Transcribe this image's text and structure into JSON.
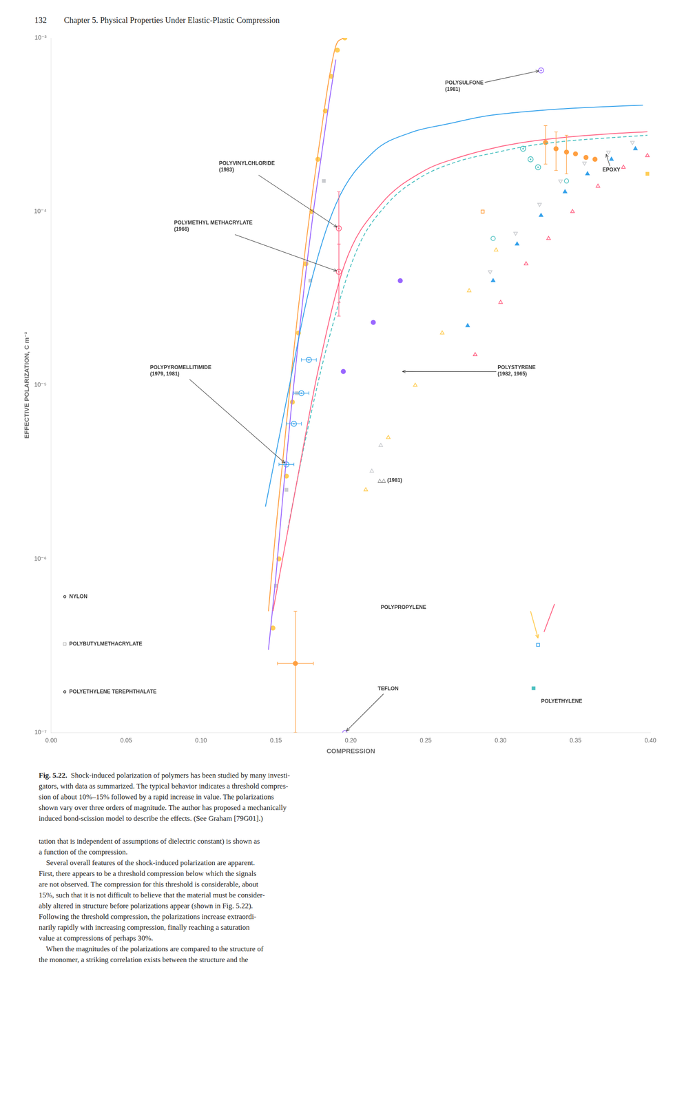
{
  "page_number": "132",
  "page_title": "Chapter 5. Physical Properties Under Elastic-Plastic Compression",
  "caption_label": "Fig. 5.22.",
  "caption_lines": [
    "Shock-induced polarization of polymers has been studied by many investi-",
    "gators, with data as summarized. The typical behavior indicates a threshold compres-",
    "sion of about 10%–15% followed by a rapid increase in value. The polarizations",
    "shown vary over three orders of magnitude. The author has proposed a mechanically",
    "induced bond-scission model to describe the effects. (See Graham [79G01].)"
  ],
  "body_lines": [
    "tation that is independent of assumptions of dielectric constant) is shown as",
    "a function of the compression.",
    "    Several overall features of the shock-induced polarization are apparent.",
    "First, there appears to be a threshold compression below which the signals",
    "are not observed. The compression for this threshold is considerable, about",
    "15%, such that it is not difficult to believe that the material must be consider-",
    "ably altered in structure before polarizations appear (shown in Fig. 5.22).",
    "Following the threshold compression, the polarizations increase extraordi-",
    "narily rapidly with increasing compression, finally reaching a saturation",
    "value at compressions of perhaps 30%.",
    "    When the magnitudes of the polarizations are compared to the structure of",
    "the monomer, a striking correlation exists between the structure and the"
  ],
  "chart_data": {
    "type": "scatter",
    "xlabel": "COMPRESSION",
    "ylabel": "EFFECTIVE POLARIZATION, C m⁻²",
    "log": "y",
    "grid": false,
    "xlim": [
      0.0,
      0.4
    ],
    "ylim": [
      1e-07,
      0.001
    ],
    "xticks": [
      {
        "value": 0.0,
        "label": "0.00"
      },
      0.05,
      {
        "value": 0.1,
        "label": "0.10"
      },
      0.15,
      {
        "value": 0.2,
        "label": "0.20"
      },
      0.25,
      {
        "value": 0.3,
        "label": "0.30"
      },
      0.35,
      {
        "value": 0.4,
        "label": "0.40"
      }
    ],
    "yticks": [
      {
        "value": 1e-07,
        "label": "10⁻⁷"
      },
      {
        "value": 1e-06,
        "label": "10⁻⁶"
      },
      {
        "value": 1e-05,
        "label": "10⁻⁵"
      },
      {
        "value": 0.0001,
        "label": "10⁻⁴"
      },
      {
        "value": 0.001,
        "label": "10⁻³"
      }
    ],
    "series": [
      {
        "type": "line",
        "line_style": "solid",
        "x": [
          0.143,
          0.158,
          0.172,
          0.19,
          0.215,
          0.24,
          0.265,
          0.29,
          0.315,
          0.34,
          0.365,
          0.395
        ],
        "values": [
          2e-06,
          9e-06,
          3.5e-05,
          0.00011,
          0.00022,
          0.000285,
          0.00032,
          0.000355,
          0.000375,
          0.00039,
          0.0004,
          0.00041
        ]
      },
      {
        "type": "line",
        "line_style": "solid",
        "x": [
          0.148,
          0.163,
          0.178,
          0.196,
          0.22,
          0.248,
          0.272,
          0.298,
          0.322,
          0.348,
          0.372,
          0.398
        ],
        "values": [
          5e-07,
          2.5e-06,
          1.2e-05,
          5e-05,
          0.00011,
          0.00017,
          0.000205,
          0.000235,
          0.000255,
          0.00027,
          0.00028,
          0.000288
        ]
      },
      {
        "type": "line",
        "line_style": "dashed",
        "x": [
          0.158,
          0.17,
          0.185,
          0.204,
          0.224,
          0.248,
          0.272,
          0.298,
          0.32,
          0.345,
          0.37,
          0.398
        ],
        "values": [
          1.5e-06,
          5e-06,
          1.8e-05,
          6e-05,
          0.00011,
          0.00016,
          0.000195,
          0.00022,
          0.00024,
          0.000255,
          0.000265,
          0.000275
        ]
      },
      {
        "type": "line",
        "line_style": "solid",
        "x": [
          0.145,
          0.15,
          0.155,
          0.16,
          0.165,
          0.17,
          0.175,
          0.18,
          0.185,
          0.19,
          0.195
        ],
        "values": [
          5e-07,
          1.5e-06,
          4e-06,
          1.1e-05,
          2.8e-05,
          6.5e-05,
          0.00014,
          0.00028,
          0.00055,
          0.0009,
          0.001
        ]
      },
      {
        "type": "line",
        "line_style": "solid",
        "x": [
          0.145,
          0.15,
          0.155,
          0.16,
          0.165,
          0.17,
          0.175,
          0.18,
          0.185,
          0.19
        ],
        "values": [
          3e-07,
          8e-07,
          2.5e-06,
          7e-06,
          1.8e-05,
          4.5e-05,
          0.0001,
          0.0002,
          0.0004,
          0.00075
        ]
      },
      {
        "type": "scatter",
        "marker": "circle",
        "x": [
          0.148,
          0.152,
          0.157,
          0.161,
          0.165,
          0.17,
          0.174,
          0.178,
          0.183,
          0.187,
          0.191,
          0.196
        ],
        "values": [
          4e-07,
          1e-06,
          3e-06,
          8e-06,
          2e-05,
          5e-05,
          0.0001,
          0.0002,
          0.00038,
          0.0006,
          0.00085,
          0.001
        ]
      },
      {
        "type": "scatter",
        "marker": "square",
        "x": [
          0.15,
          0.157,
          0.164,
          0.173,
          0.182
        ],
        "values": [
          7e-07,
          2.5e-06,
          9e-06,
          4e-05,
          0.00015
        ]
      },
      {
        "type": "scatter",
        "marker": "circle_dot",
        "x": [
          0.157,
          0.162,
          0.167,
          0.172
        ],
        "values": [
          3.5e-06,
          6e-06,
          9e-06,
          1.4e-05
        ],
        "xerr": [
          0.005,
          0.005,
          0.005,
          0.005
        ]
      },
      {
        "type": "scatter",
        "marker": "circle_dot",
        "x": [
          0.192,
          0.192
        ],
        "values": [
          8e-05,
          4.5e-05
        ],
        "yerr": [
          5e-05,
          2e-05
        ]
      },
      {
        "type": "scatter",
        "marker": "circle_dot",
        "x": [
          0.315,
          0.32,
          0.325
        ],
        "values": [
          0.00023,
          0.0002,
          0.00018
        ]
      },
      {
        "type": "scatter",
        "marker": "circle",
        "x": [
          0.33,
          0.337,
          0.344,
          0.35,
          0.357,
          0.363
        ],
        "values": [
          0.00025,
          0.00023,
          0.00022,
          0.000215,
          0.000205,
          0.0002
        ],
        "yerr": [
          6.25e-05,
          5.75e-05,
          5.5e-05,
          null,
          null,
          null
        ]
      },
      {
        "type": "scatter",
        "marker": "circle_dot",
        "x": [
          0.327
        ],
        "values": [
          0.00065
        ]
      },
      {
        "type": "scatter",
        "marker": "square",
        "x": [
          0.398
        ],
        "values": [
          0.000165
        ]
      },
      {
        "type": "scatter",
        "marker": "triangle_down_open",
        "x": [
          0.293,
          0.31,
          0.326,
          0.34,
          0.356,
          0.372,
          0.388
        ],
        "values": [
          4.5e-05,
          7.5e-05,
          0.00011,
          0.00015,
          0.00019,
          0.00022,
          0.00025
        ]
      },
      {
        "type": "scatter",
        "marker": "triangle",
        "x": [
          0.278,
          0.295,
          0.311,
          0.327,
          0.343,
          0.358,
          0.374,
          0.39
        ],
        "values": [
          2.2e-05,
          4e-05,
          6.5e-05,
          9.5e-05,
          0.00013,
          0.000165,
          0.0002,
          0.00023
        ]
      },
      {
        "type": "scatter",
        "marker": "triangle_open",
        "x": [
          0.283,
          0.3,
          0.317,
          0.332,
          0.348,
          0.365,
          0.382,
          0.398
        ],
        "values": [
          1.5e-05,
          3e-05,
          5e-05,
          7e-05,
          0.0001,
          0.00014,
          0.00018,
          0.00021
        ]
      },
      {
        "type": "scatter",
        "marker": "circle_open",
        "x": [
          0.295,
          0.344
        ],
        "values": [
          7e-05,
          0.00015
        ]
      },
      {
        "type": "scatter",
        "marker": "square_open",
        "x": [
          0.288
        ],
        "values": [
          0.0001
        ]
      },
      {
        "type": "scatter",
        "marker": "circle",
        "x": [
          0.195,
          0.215,
          0.233
        ],
        "values": [
          1.2e-05,
          2.3e-05,
          4e-05
        ]
      },
      {
        "type": "scatter",
        "marker": "triangle_open",
        "x": [
          0.21,
          0.225,
          0.243,
          0.261,
          0.279,
          0.297
        ],
        "values": [
          2.5e-06,
          5e-06,
          1e-05,
          2e-05,
          3.5e-05,
          6e-05
        ]
      },
      {
        "type": "scatter",
        "marker": "triangle_open",
        "x": [
          0.214,
          0.22
        ],
        "values": [
          3.2e-06,
          4.5e-06
        ]
      },
      {
        "type": "scatter",
        "marker": "square_open",
        "x": [
          0.325
        ],
        "values": [
          3.2e-07
        ]
      },
      {
        "type": "line",
        "line_style": "solid",
        "x": [
          0.329,
          0.336
        ],
        "values": [
          3.8e-07,
          5.5e-07
        ]
      },
      {
        "type": "scatter",
        "marker": "square",
        "x": [
          0.322
        ],
        "values": [
          1.8e-07
        ]
      },
      {
        "type": "scatter",
        "marker": "circle",
        "x": [
          0.163
        ],
        "values": [
          2.5e-07
        ],
        "xerr": [
          0.012
        ],
        "yerr_minus": [
          1.5e-07
        ],
        "yerr_plus": [
          2.5e-07
        ]
      },
      {
        "type": "scatter",
        "marker": "circle_open",
        "x": [
          0.196
        ],
        "values": [
          1e-07
        ]
      },
      {
        "type": "line",
        "line_style": "arrow",
        "x": [
          0.32,
          0.325
        ],
        "values": [
          5e-07,
          3.5e-07
        ]
      }
    ],
    "annotations": [
      {
        "text": "POLYSULFONE\n(1981)",
        "x": 0.327,
        "y": 0.00065,
        "text_x": 0.263,
        "text_y": 0.00048
      },
      {
        "text": "POLYVINYLCHLORIDE\n(1983)",
        "x": 0.192,
        "y": 8e-05,
        "text_x": 0.112,
        "text_y": 0.000165
      },
      {
        "text": "POLYMETHYL METHACRYLATE\n(1966)",
        "x": 0.192,
        "y": 4.5e-05,
        "text_x": 0.082,
        "text_y": 7.5e-05
      },
      {
        "text": "POLYPYROMELLITIMIDE\n(1979, 1981)",
        "x": 0.157,
        "y": 3.5e-06,
        "text_x": 0.066,
        "text_y": 1.1e-05
      },
      {
        "text": "EPOXY",
        "x": 0.37,
        "y": 0.00022,
        "text_x": 0.368,
        "text_y": 0.000165
      },
      {
        "text": "POLYSTYRENE\n(1982, 1965)",
        "x": 0.233,
        "y": 1.2e-05,
        "text_x": 0.298,
        "text_y": 1.1e-05
      },
      {
        "text": "△△ (1981)",
        "x": 0.218,
        "y": 2.8e-06
      },
      {
        "text": "TEFLON",
        "x": 0.196,
        "y": 1e-07,
        "text_x": 0.218,
        "text_y": 1.7e-07
      },
      {
        "text": "o  NYLON",
        "x": 0.008,
        "y": 6e-07
      },
      {
        "text": "□  POLYBUTYLMETHACRYLATE",
        "x": 0.008,
        "y": 3.2e-07
      },
      {
        "text": "o  POLYETHYLENE TEREPHTHALATE",
        "x": 0.008,
        "y": 1.7e-07
      },
      {
        "text": "POLYPROPYLENE",
        "x": 0.22,
        "y": 5.2e-07
      },
      {
        "text": "POLYETHYLENE",
        "x": 0.327,
        "y": 1.5e-07
      }
    ]
  }
}
